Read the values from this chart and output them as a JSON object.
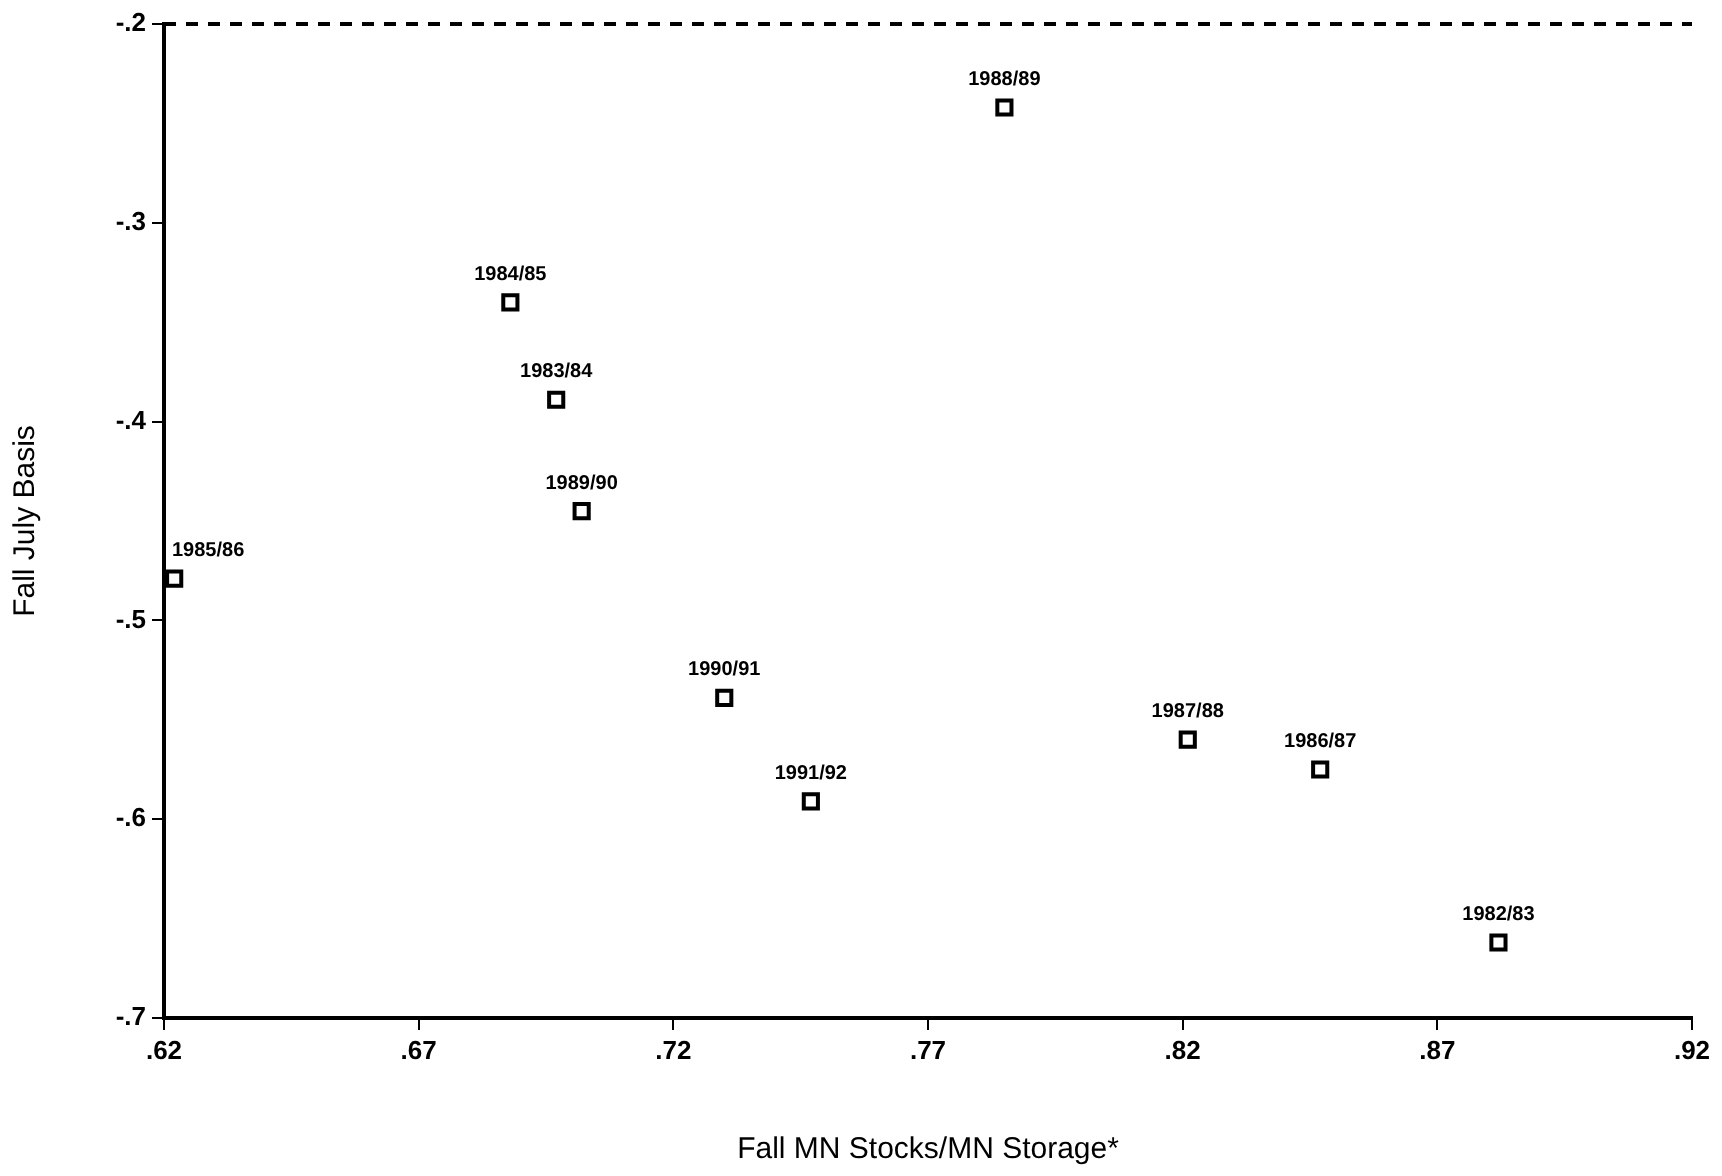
{
  "chart_data": {
    "type": "scatter",
    "xlabel": "Fall MN Stocks/MN Storage*",
    "ylabel": "Fall July Basis",
    "series": [
      {
        "color": "#000000",
        "x": [
          0.622,
          0.688,
          0.697,
          0.702,
          0.785,
          0.73,
          0.747,
          0.821,
          0.847,
          0.882
        ],
        "values": [
          -0.479,
          -0.34,
          -0.389,
          -0.445,
          -0.242,
          -0.539,
          -0.591,
          -0.56,
          -0.575,
          -0.662
        ],
        "value_labels": [
          "1985/86",
          "1984/85",
          "1983/84",
          "1989/90",
          "1988/89",
          "1990/91",
          "1991/92",
          "1987/88",
          "1986/87",
          "1982/83"
        ]
      }
    ],
    "xlim": [
      0.62,
      0.92
    ],
    "xticks": [
      {
        "value": 0.62,
        "label": ".62"
      },
      {
        "value": 0.67,
        "label": ".67"
      },
      {
        "value": 0.72,
        "label": ".72"
      },
      {
        "value": 0.77,
        "label": ".77"
      },
      {
        "value": 0.82,
        "label": ".82"
      },
      {
        "value": 0.87,
        "label": ".87"
      },
      {
        "value": 0.92,
        "label": ".92"
      }
    ],
    "ylim": [
      -0.7,
      -0.2
    ],
    "yticks": [
      {
        "value": -0.7,
        "label": "-.7"
      },
      {
        "value": -0.6,
        "label": "-.6"
      },
      {
        "value": -0.5,
        "label": "-.5"
      },
      {
        "value": -0.4,
        "label": "-.4"
      },
      {
        "value": -0.3,
        "label": "-.3"
      },
      {
        "value": -0.2,
        "label": "-.2"
      }
    ],
    "ref_lines": [
      {
        "axis": "y",
        "value": -0.2,
        "line_style": "dashed",
        "color": "#000000"
      }
    ],
    "marker": "square",
    "grid": false,
    "legend": false
  }
}
